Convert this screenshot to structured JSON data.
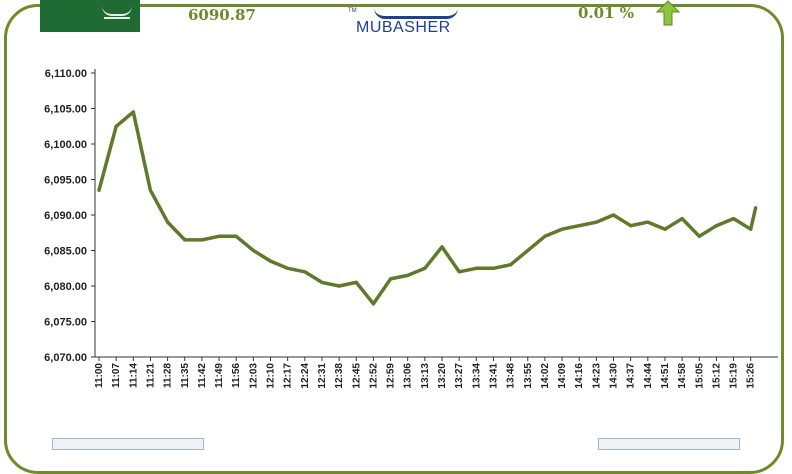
{
  "header": {
    "price": "6090.87",
    "brand": "MUBASHER",
    "brand_mark": "TM",
    "change_percent": "0.01 %",
    "flag_icon": "saudi-flag-icon",
    "arrow_icon": "green-up-arrow-icon"
  },
  "colors": {
    "line": "#5e7a2a",
    "frame": "#6e8b2a",
    "brand": "#23408e",
    "text": "#6e8b2a",
    "arrow": "#8cc63f"
  },
  "chart_data": {
    "type": "line",
    "title": "",
    "xlabel": "",
    "ylabel": "",
    "ylim": [
      6070,
      6110
    ],
    "yticks": [
      "6,110.00",
      "6,105.00",
      "6,100.00",
      "6,095.00",
      "6,090.00",
      "6,085.00",
      "6,080.00",
      "6,075.00",
      "6,070.00"
    ],
    "x_tick_labels": [
      "11:00",
      "11:07",
      "11:14",
      "11:21",
      "11:28",
      "11:35",
      "11:42",
      "11:49",
      "11:56",
      "12:03",
      "12:10",
      "12:17",
      "12:24",
      "12:31",
      "12:38",
      "12:45",
      "12:52",
      "12:59",
      "13:06",
      "13:13",
      "13:20",
      "13:27",
      "13:34",
      "13:41",
      "13:48",
      "13:55",
      "14:02",
      "14:09",
      "14:16",
      "14:23",
      "14:30",
      "14:37",
      "14:44",
      "14:51",
      "14:58",
      "15:05",
      "15:12",
      "15:19",
      "15:26"
    ],
    "grid": false,
    "legend": "none",
    "series": [
      {
        "x": [
          "11:00",
          "11:07",
          "11:14",
          "11:21",
          "11:28",
          "11:35",
          "11:42",
          "11:49",
          "11:56",
          "12:03",
          "12:10",
          "12:17",
          "12:24",
          "12:31",
          "12:38",
          "12:45",
          "12:52",
          "12:59",
          "13:06",
          "13:13",
          "13:20",
          "13:27",
          "13:34",
          "13:41",
          "13:48",
          "13:55",
          "14:02",
          "14:09",
          "14:16",
          "14:23",
          "14:30",
          "14:37",
          "14:44",
          "14:51",
          "14:58",
          "15:05",
          "15:12",
          "15:19",
          "15:26",
          "15:28"
        ],
        "values": [
          6093.5,
          6102.5,
          6104.5,
          6093.5,
          6089.0,
          6086.5,
          6086.5,
          6087.0,
          6087.0,
          6085.0,
          6083.5,
          6082.5,
          6082.0,
          6080.5,
          6080.0,
          6080.5,
          6077.5,
          6081.0,
          6081.5,
          6082.5,
          6085.5,
          6082.0,
          6082.5,
          6082.5,
          6083.0,
          6085.0,
          6087.0,
          6088.0,
          6088.5,
          6089.0,
          6090.0,
          6088.5,
          6089.0,
          6088.0,
          6089.5,
          6087.0,
          6088.5,
          6089.5,
          6088.0,
          6091.0
        ]
      }
    ]
  }
}
